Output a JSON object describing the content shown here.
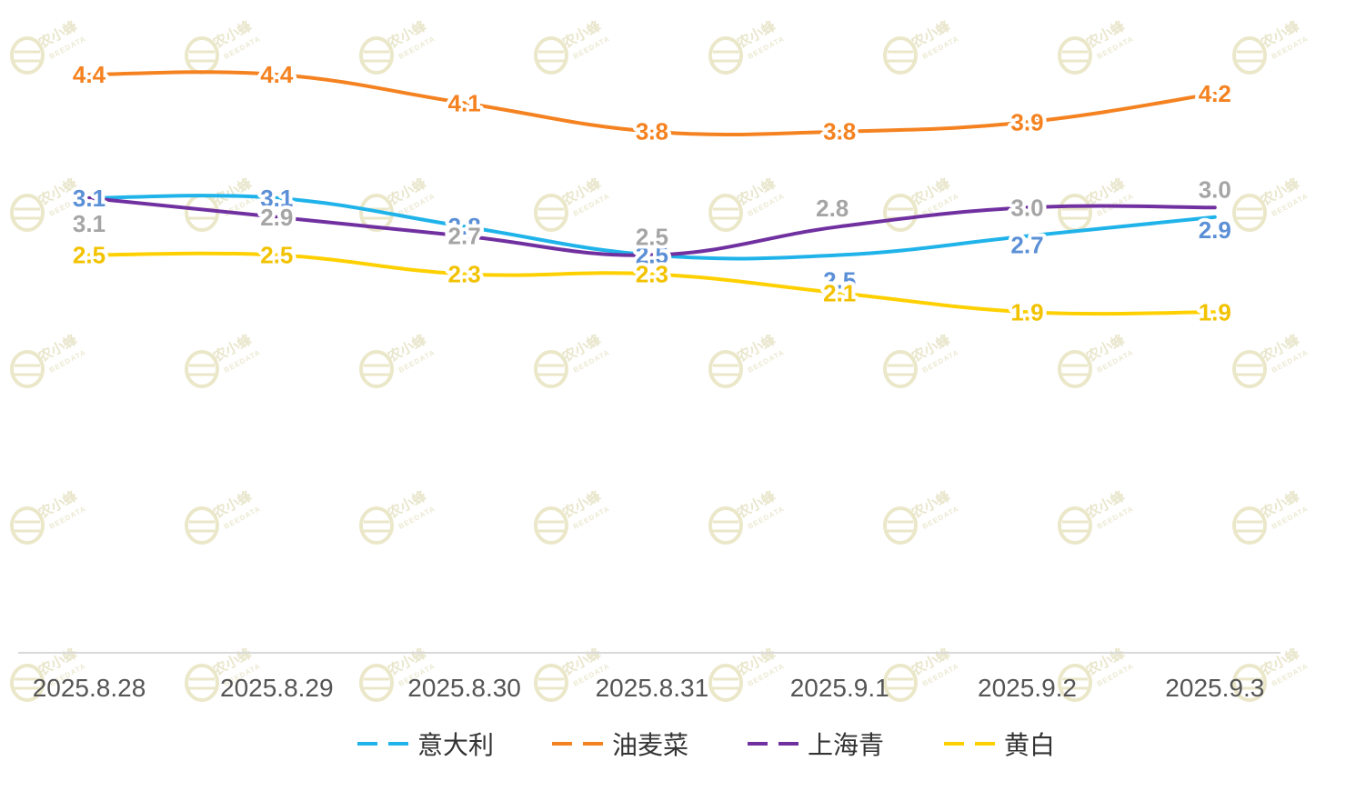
{
  "watermark": {
    "text": "农小蜂",
    "sub": "BEEDATA"
  },
  "chart_data": {
    "type": "line",
    "smooth": true,
    "categories": [
      "2025.8.28",
      "2025.8.29",
      "2025.8.30",
      "2025.8.31",
      "2025.9.1",
      "2025.9.2",
      "2025.9.3"
    ],
    "ylim": [
      0,
      5
    ],
    "grid": false,
    "legend_position": "bottom",
    "series": [
      {
        "name": "意大利",
        "color": "#1fb3ea",
        "label_color": "#5b8fd6",
        "values": [
          3.1,
          3.1,
          2.8,
          2.5,
          2.5,
          2.7,
          2.9
        ]
      },
      {
        "name": "油麦菜",
        "color": "#f58220",
        "label_color": "#f58220",
        "values": [
          4.4,
          4.4,
          4.1,
          3.8,
          3.8,
          3.9,
          4.2
        ]
      },
      {
        "name": "上海青",
        "color": "#7030a0",
        "label_color": "#a5a5a5",
        "values": [
          3.1,
          2.9,
          2.7,
          2.5,
          2.8,
          3.0,
          3.0
        ]
      },
      {
        "name": "黄白",
        "color": "#ffd000",
        "label_color": "#f2c200",
        "values": [
          2.5,
          2.5,
          2.3,
          2.3,
          2.1,
          1.9,
          1.9
        ]
      }
    ],
    "value_labels": [
      [
        "3.1",
        "3.1",
        "2.8",
        "2.5",
        "2.5",
        "2.7",
        "2.9"
      ],
      [
        "4.4",
        "4.4",
        "4.1",
        "3.8",
        "3.8",
        "3.9",
        "4.2"
      ],
      [
        "3.1",
        "2.9",
        "2.7",
        "2.5",
        "2.8",
        "3.0",
        "3.0"
      ],
      [
        "2.5",
        "2.5",
        "2.3",
        "2.3",
        "2.1",
        "1.9",
        "1.9"
      ]
    ]
  }
}
